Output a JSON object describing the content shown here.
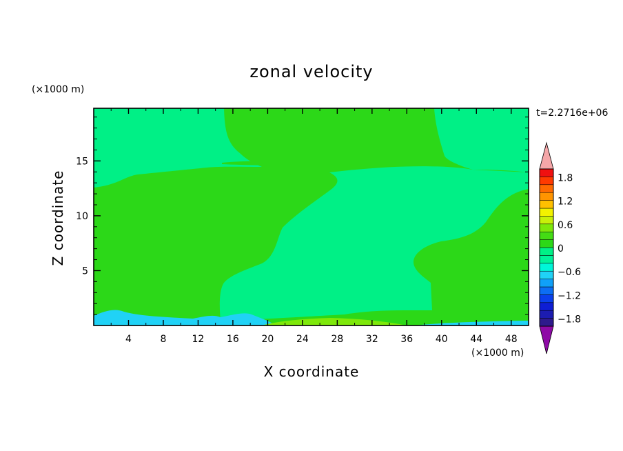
{
  "chart_data": {
    "type": "heatmap",
    "title": "zonal velocity",
    "xlabel": "X coordinate",
    "ylabel": "Z coordinate",
    "x_unit_label": "(×1000 m)",
    "y_unit_label": "(×1000 m)",
    "time_label": "t=2.2716e+06",
    "xlim": [
      0,
      50
    ],
    "ylim": [
      0,
      19.8
    ],
    "x_ticks": [
      4,
      8,
      12,
      16,
      20,
      24,
      28,
      32,
      36,
      40,
      44,
      48
    ],
    "y_ticks": [
      5,
      10,
      15
    ],
    "colorbar": {
      "levels": [
        -2.0,
        -1.8,
        -1.6,
        -1.4,
        -1.2,
        -1.0,
        -0.8,
        -0.6,
        -0.4,
        -0.2,
        0.0,
        0.2,
        0.4,
        0.6,
        0.8,
        1.0,
        1.2,
        1.4,
        1.6,
        1.8,
        2.0
      ],
      "colors": [
        "#2e1a8c",
        "#1c1cb0",
        "#0e1ed4",
        "#0a40ec",
        "#0c6ef4",
        "#10a0f8",
        "#20d2f6",
        "#00f6d8",
        "#00f29a",
        "#00f086",
        "#2cd818",
        "#44dc14",
        "#7ee80a",
        "#c8f00a",
        "#f2f200",
        "#ffc000",
        "#ff9400",
        "#ff6a00",
        "#ff3a00",
        "#f01010"
      ],
      "under_color": "#8e0aa6",
      "over_color": "#f5a6a8",
      "tick_labels": [
        "1.8",
        "1.2",
        "0.6",
        "0",
        "−0.6",
        "−1.2",
        "−1.8"
      ],
      "tick_values": [
        1.8,
        1.2,
        0.6,
        0.0,
        -0.6,
        -1.2,
        -1.8
      ]
    },
    "regions": [
      {
        "value": 0.1,
        "color": "#2cd818",
        "x": [
          0,
          50
        ],
        "y": [
          0,
          19.8
        ]
      },
      {
        "value": -0.1,
        "color": "#00f086",
        "note_x": [
          0,
          18.5
        ],
        "note_y": [
          12.6,
          19.8
        ]
      },
      {
        "value": -0.1,
        "color": "#00f086",
        "note_x": [
          14.5,
          50
        ],
        "note_y": [
          0.8,
          14.7
        ]
      },
      {
        "value": -0.1,
        "color": "#00f086",
        "note_x": [
          40,
          50
        ],
        "note_y": [
          14.0,
          19.8
        ]
      },
      {
        "value": -0.7,
        "color": "#20d2f6",
        "note_x": [
          0,
          20
        ],
        "note_y": [
          0,
          0.8
        ]
      },
      {
        "value": 0.5,
        "color": "#7ee80a",
        "note_x": [
          20,
          38
        ],
        "note_y": [
          0,
          0.5
        ]
      }
    ]
  }
}
